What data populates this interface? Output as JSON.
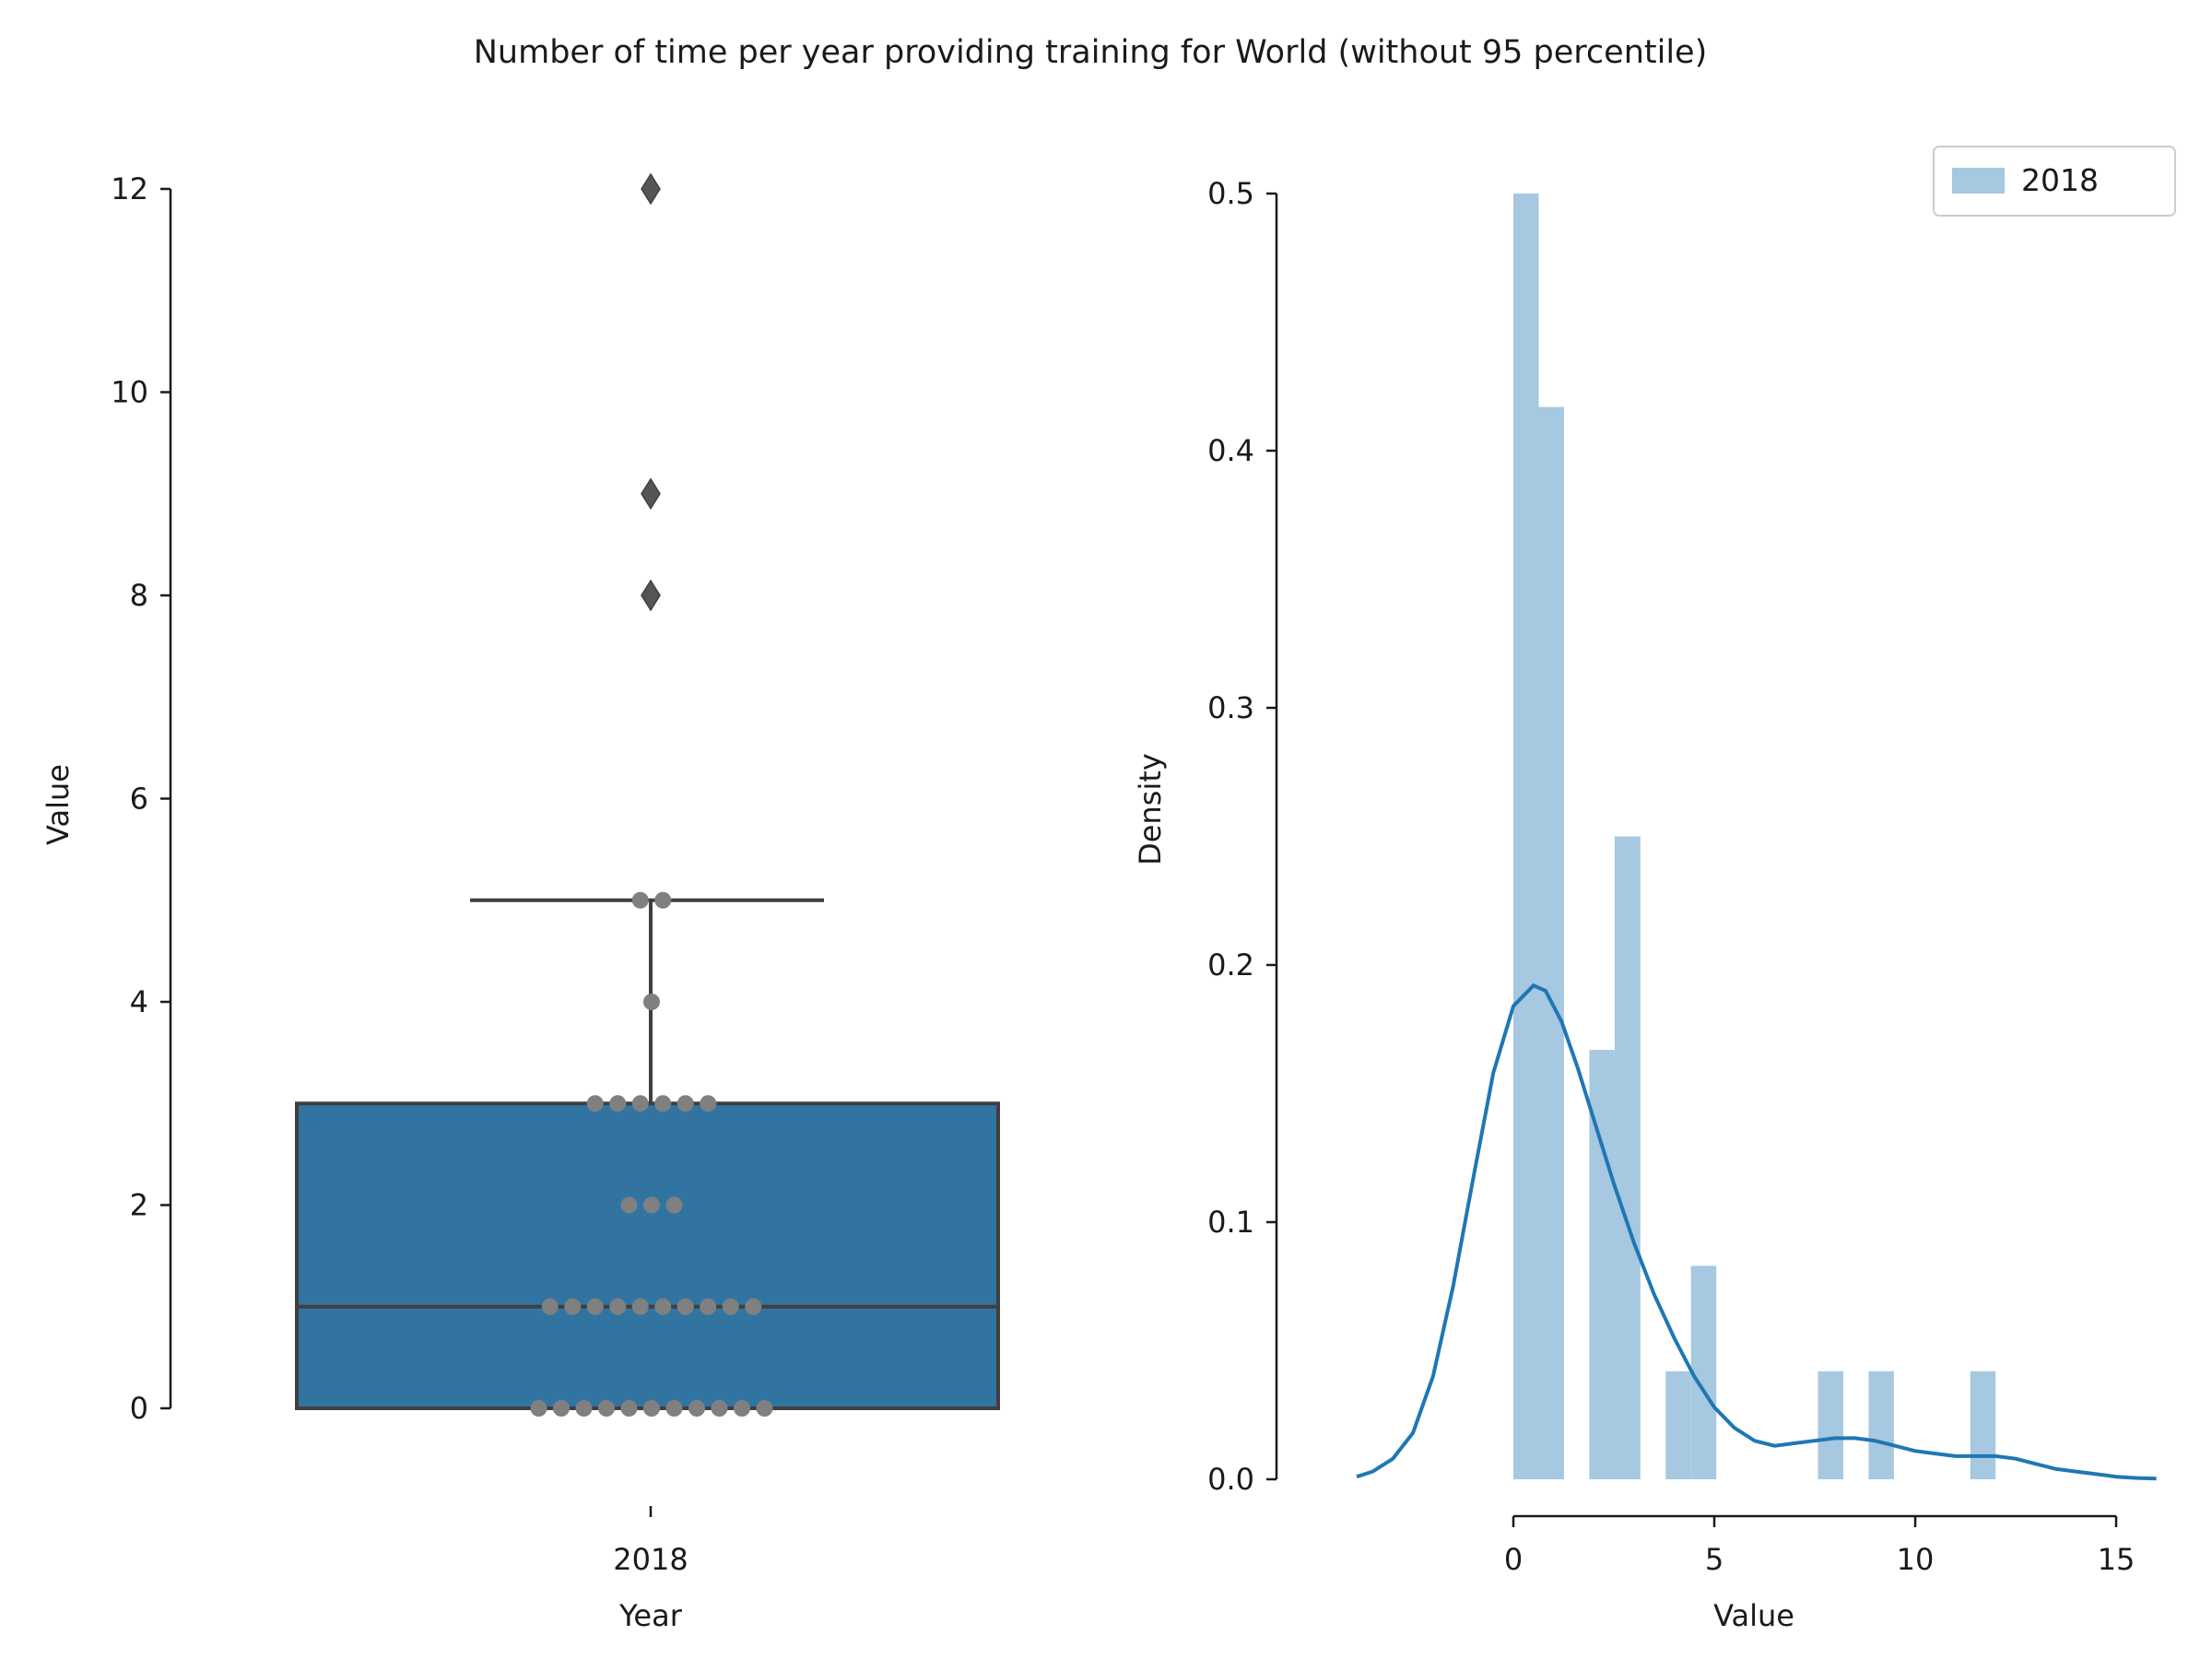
{
  "title": "Number of time per year providing training for World (without 95 percentile)",
  "chart_data": [
    {
      "type": "box",
      "xlabel": "Year",
      "ylabel": "Value",
      "categories": [
        "2018"
      ],
      "ylim": [
        -0.3,
        12.3
      ],
      "yticks": [
        0,
        2,
        4,
        6,
        8,
        10,
        12
      ],
      "box": {
        "q1": 0,
        "median": 1,
        "q3": 3,
        "whisker_low": 0,
        "whisker_high": 5
      },
      "outliers": [
        8,
        9,
        12
      ],
      "swarm_points": [
        {
          "value": 0,
          "count": 11
        },
        {
          "value": 1,
          "count": 10
        },
        {
          "value": 2,
          "count": 3
        },
        {
          "value": 3,
          "count": 6
        },
        {
          "value": 4,
          "count": 1
        },
        {
          "value": 5,
          "count": 2
        }
      ],
      "colors": {
        "box_fill": "#3274a1",
        "box_edge": "#3f3f3f",
        "swarm": "#808080",
        "outlier": "#555555"
      }
    },
    {
      "type": "histogram+kde",
      "xlabel": "Value",
      "ylabel": "Density",
      "xlim": [
        -4.4,
        16
      ],
      "ylim": [
        0,
        0.5
      ],
      "xticks": [
        0,
        5,
        10,
        15
      ],
      "yticks": [
        0.0,
        0.1,
        0.2,
        0.3,
        0.4,
        0.5
      ],
      "legend": {
        "position": "top-right",
        "entries": [
          "2018"
        ]
      },
      "histogram": {
        "series_name": "2018",
        "bins": [
          {
            "x0": 0.0,
            "x1": 0.63,
            "density": 0.5
          },
          {
            "x0": 0.63,
            "x1": 1.26,
            "density": 0.417
          },
          {
            "x0": 1.89,
            "x1": 2.52,
            "density": 0.167
          },
          {
            "x0": 2.52,
            "x1": 3.16,
            "density": 0.25
          },
          {
            "x0": 3.79,
            "x1": 4.42,
            "density": 0.042
          },
          {
            "x0": 4.42,
            "x1": 5.05,
            "density": 0.083
          },
          {
            "x0": 7.58,
            "x1": 8.21,
            "density": 0.042
          },
          {
            "x0": 8.84,
            "x1": 9.47,
            "density": 0.042
          },
          {
            "x0": 11.37,
            "x1": 12.0,
            "density": 0.042
          }
        ]
      },
      "kde": {
        "x": [
          -3.9,
          -3.5,
          -3.0,
          -2.5,
          -2.0,
          -1.5,
          -1.0,
          -0.5,
          0.0,
          0.5,
          0.8,
          1.2,
          1.6,
          2.0,
          2.5,
          3.0,
          3.5,
          4.0,
          4.5,
          5.0,
          5.5,
          6.0,
          6.5,
          7.0,
          7.5,
          8.0,
          8.5,
          9.0,
          9.5,
          10.0,
          10.5,
          11.0,
          11.5,
          12.0,
          12.5,
          13.0,
          13.5,
          14.0,
          14.5,
          15.0,
          15.5,
          16.0
        ],
        "y": [
          0.001,
          0.003,
          0.008,
          0.018,
          0.04,
          0.075,
          0.117,
          0.158,
          0.184,
          0.192,
          0.19,
          0.178,
          0.16,
          0.14,
          0.115,
          0.092,
          0.072,
          0.055,
          0.04,
          0.028,
          0.02,
          0.015,
          0.013,
          0.014,
          0.015,
          0.016,
          0.016,
          0.015,
          0.013,
          0.011,
          0.01,
          0.009,
          0.009,
          0.009,
          0.008,
          0.006,
          0.004,
          0.003,
          0.002,
          0.001,
          0.0005,
          0.0003
        ]
      },
      "colors": {
        "bar": "#a6c8e0",
        "line": "#1f77b4"
      }
    }
  ]
}
